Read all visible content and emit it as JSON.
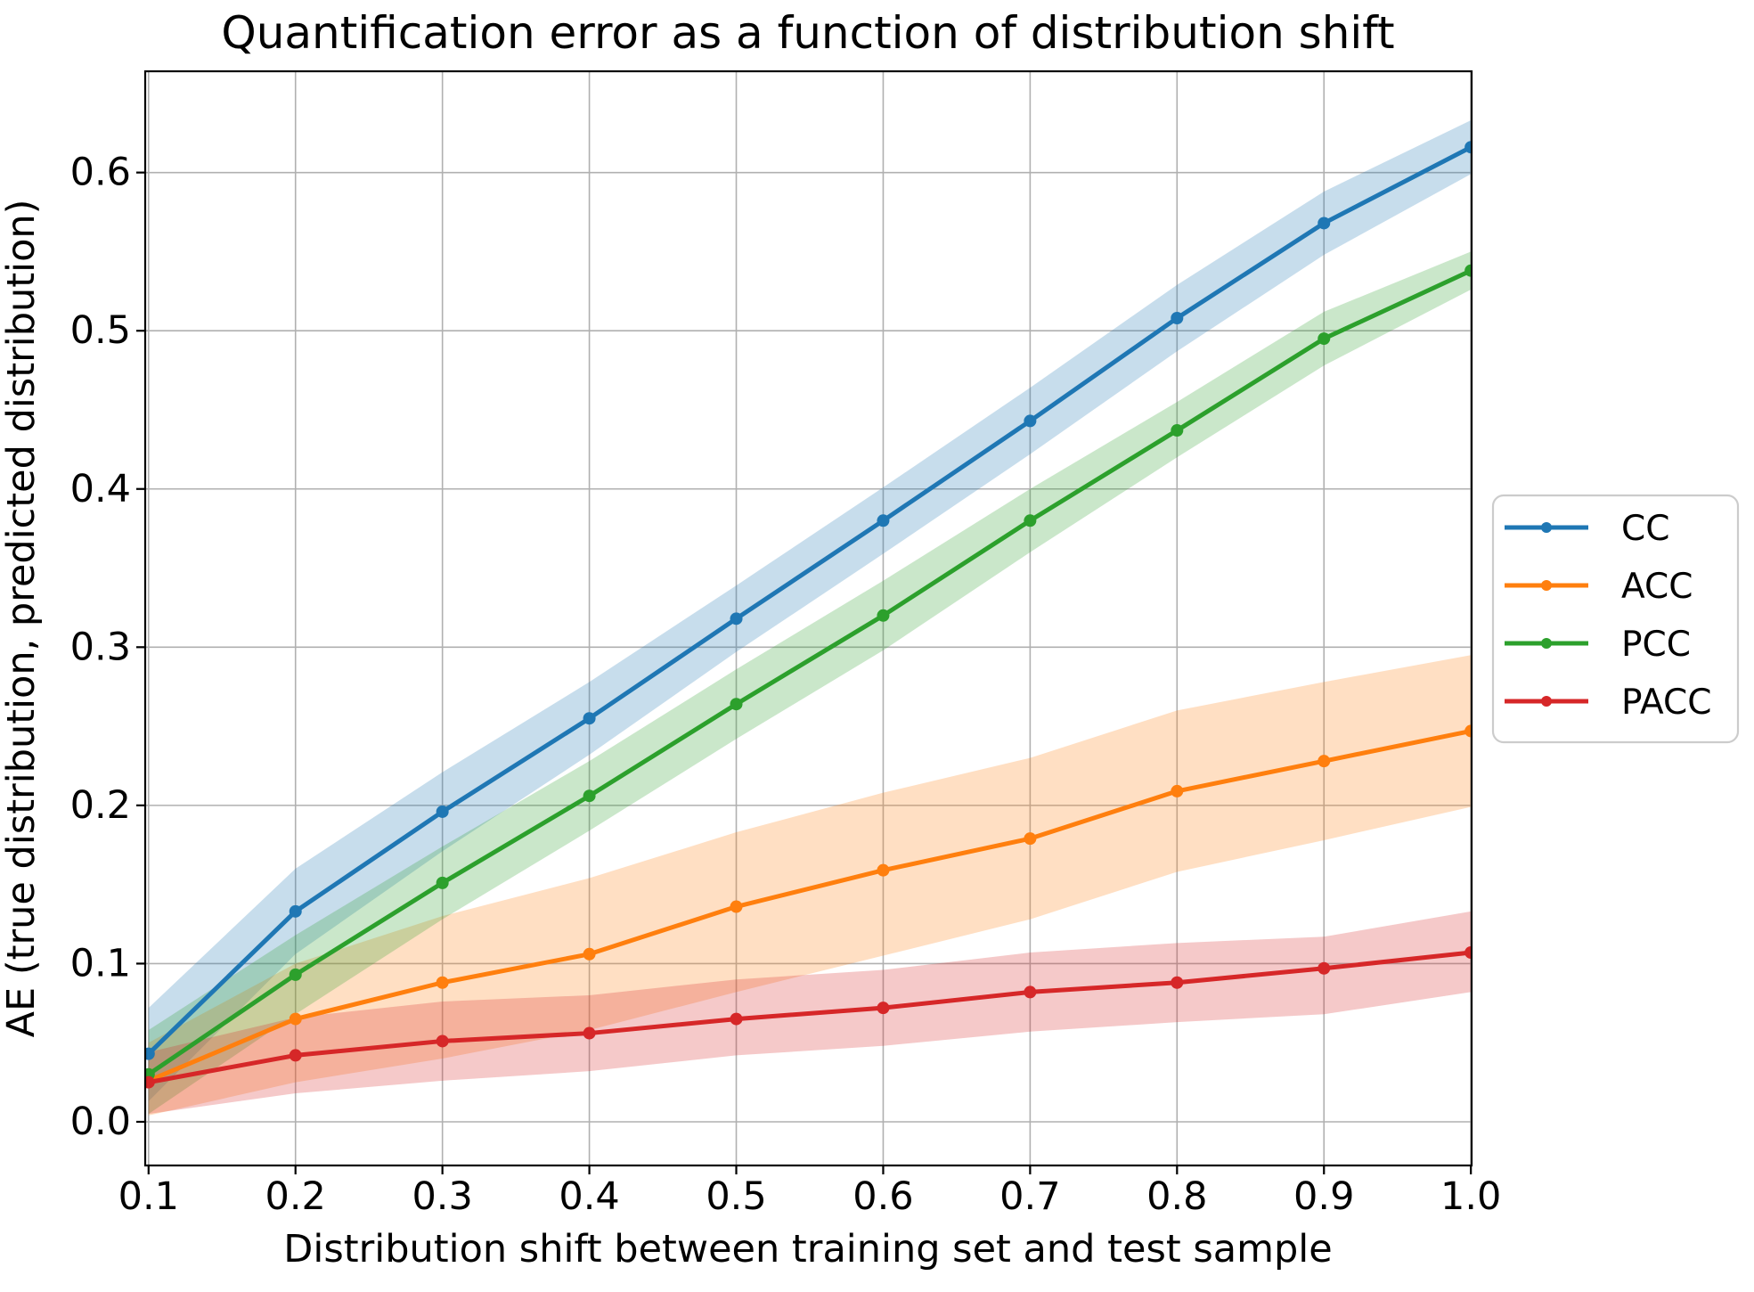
{
  "chart_data": {
    "type": "line",
    "title": "Quantification error as a function of distribution shift",
    "xlabel": "Distribution shift between training set and test sample",
    "ylabel": "AE (true distribution, predicted distribution)",
    "x": [
      0.1,
      0.2,
      0.3,
      0.4,
      0.5,
      0.6,
      0.7,
      0.8,
      0.9,
      1.0
    ],
    "x_tick_labels": [
      "0.1",
      "0.2",
      "0.3",
      "0.4",
      "0.5",
      "0.6",
      "0.7",
      "0.8",
      "0.9",
      "1.0"
    ],
    "y_ticks": [
      0.0,
      0.1,
      0.2,
      0.3,
      0.4,
      0.5,
      0.6
    ],
    "y_tick_labels": [
      "0.0",
      "0.1",
      "0.2",
      "0.3",
      "0.4",
      "0.5",
      "0.6"
    ],
    "xlim": [
      0.0977,
      1.0005
    ],
    "ylim": [
      -0.0276,
      0.664
    ],
    "grid": true,
    "legend_position": "right-outside",
    "band_alpha": 0.25,
    "colors": {
      "grid": "#b0b0b0",
      "spine": "#000000",
      "text": "#000000",
      "legend_border": "#cccccc",
      "background": "#ffffff"
    },
    "series": [
      {
        "name": "CC",
        "color": "#1f77b4",
        "values": [
          0.043,
          0.133,
          0.196,
          0.255,
          0.318,
          0.38,
          0.443,
          0.508,
          0.568,
          0.616
        ],
        "band_lower": [
          0.013,
          0.106,
          0.171,
          0.232,
          0.297,
          0.359,
          0.422,
          0.487,
          0.548,
          0.599
        ],
        "band_upper": [
          0.072,
          0.16,
          0.221,
          0.278,
          0.339,
          0.401,
          0.464,
          0.529,
          0.588,
          0.633
        ]
      },
      {
        "name": "ACC",
        "color": "#ff7f0e",
        "values": [
          0.026,
          0.065,
          0.088,
          0.106,
          0.136,
          0.159,
          0.179,
          0.209,
          0.228,
          0.247
        ],
        "band_lower": [
          0.004,
          0.025,
          0.04,
          0.058,
          0.082,
          0.105,
          0.128,
          0.158,
          0.178,
          0.199
        ],
        "band_upper": [
          0.05,
          0.1,
          0.13,
          0.154,
          0.183,
          0.208,
          0.23,
          0.26,
          0.278,
          0.295
        ]
      },
      {
        "name": "PCC",
        "color": "#2ca02c",
        "values": [
          0.03,
          0.093,
          0.151,
          0.206,
          0.264,
          0.32,
          0.38,
          0.437,
          0.495,
          0.538
        ],
        "band_lower": [
          0.005,
          0.068,
          0.128,
          0.184,
          0.242,
          0.298,
          0.36,
          0.42,
          0.478,
          0.526
        ],
        "band_upper": [
          0.058,
          0.118,
          0.174,
          0.228,
          0.286,
          0.342,
          0.4,
          0.455,
          0.512,
          0.55
        ]
      },
      {
        "name": "PACC",
        "color": "#d62728",
        "values": [
          0.025,
          0.042,
          0.051,
          0.056,
          0.065,
          0.072,
          0.082,
          0.088,
          0.097,
          0.107
        ],
        "band_lower": [
          0.005,
          0.018,
          0.026,
          0.032,
          0.042,
          0.048,
          0.057,
          0.063,
          0.068,
          0.082
        ],
        "band_upper": [
          0.044,
          0.066,
          0.076,
          0.08,
          0.09,
          0.096,
          0.107,
          0.113,
          0.117,
          0.133
        ]
      }
    ]
  }
}
